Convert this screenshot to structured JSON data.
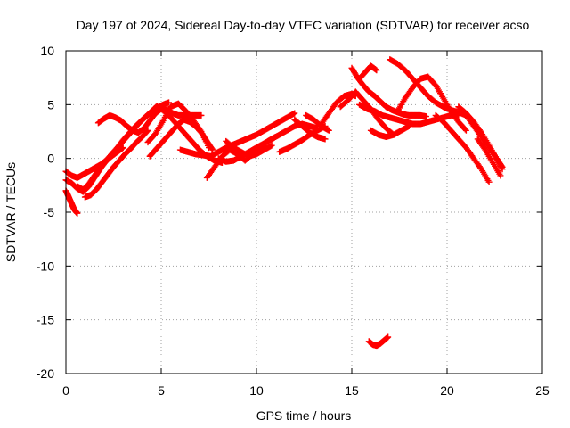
{
  "chart_data": {
    "type": "scatter",
    "title": "Day 197 of 2024, Sidereal Day-to-day VTEC variation (SDTVAR) for receiver acso",
    "xlabel": "GPS time / hours",
    "ylabel": "SDTVAR / TECUs",
    "xlim": [
      0,
      25
    ],
    "ylim": [
      -20,
      10
    ],
    "xticks": [
      "0",
      "5",
      "10",
      "15",
      "20",
      "25"
    ],
    "yticks": [
      "-20",
      "-15",
      "-10",
      "-5",
      "0",
      "5",
      "10"
    ],
    "grid": true,
    "marker": "+",
    "color": "#ff0000",
    "series": [
      {
        "name": "track-1",
        "x": [
          0.0,
          0.1,
          0.2,
          0.3,
          0.4,
          0.5,
          0.6
        ],
        "y": [
          -3.0,
          -3.4,
          -3.8,
          -4.2,
          -4.6,
          -4.9,
          -5.1
        ]
      },
      {
        "name": "track-2",
        "x": [
          0.0,
          0.3,
          0.6,
          0.9,
          1.2,
          1.5,
          1.8,
          2.1,
          2.4,
          2.7,
          3.0,
          3.3,
          3.6,
          3.9,
          4.2,
          4.5,
          4.8
        ],
        "y": [
          -2.0,
          -2.3,
          -2.8,
          -3.1,
          -2.6,
          -1.8,
          -1.0,
          -0.2,
          0.4,
          1.0,
          1.6,
          2.2,
          2.8,
          3.4,
          3.9,
          4.4,
          4.9
        ]
      },
      {
        "name": "track-3",
        "x": [
          0.6,
          0.9,
          1.2,
          1.5,
          1.8,
          2.1,
          2.4,
          2.7,
          3.0,
          3.3,
          3.6,
          3.9,
          4.2,
          4.5,
          4.8,
          5.1,
          5.4
        ],
        "y": [
          -2.6,
          -2.9,
          -2.4,
          -1.6,
          -0.9,
          -0.3,
          0.4,
          1.0,
          1.7,
          2.3,
          2.9,
          3.4,
          3.9,
          4.3,
          4.7,
          5.0,
          5.2
        ]
      },
      {
        "name": "track-4",
        "x": [
          1.0,
          1.3,
          1.6,
          1.9,
          2.2,
          2.5,
          2.8,
          3.1,
          3.4,
          3.7,
          4.0,
          4.3
        ],
        "y": [
          -3.6,
          -3.4,
          -2.9,
          -2.2,
          -1.5,
          -0.8,
          -0.2,
          0.4,
          0.9,
          1.5,
          2.0,
          2.6
        ]
      },
      {
        "name": "track-5",
        "x": [
          0.0,
          0.3,
          0.6,
          0.9,
          1.2,
          1.5,
          1.8,
          2.1,
          2.4,
          2.7,
          3.0
        ],
        "y": [
          -1.2,
          -1.6,
          -1.8,
          -1.5,
          -1.2,
          -0.9,
          -0.6,
          -0.2,
          0.2,
          0.6,
          1.0
        ]
      },
      {
        "name": "track-6",
        "x": [
          1.7,
          2.0,
          2.3,
          2.6,
          2.9,
          3.2,
          3.5,
          3.8,
          4.1,
          4.4,
          4.7,
          5.0,
          5.3,
          5.6,
          5.9,
          6.2,
          6.5,
          6.8,
          7.1
        ],
        "y": [
          3.3,
          3.7,
          4.0,
          3.8,
          3.5,
          3.0,
          2.6,
          2.4,
          2.8,
          3.5,
          4.2,
          4.6,
          4.5,
          4.2,
          4.0,
          4.0,
          4.0,
          4.0,
          4.0
        ]
      },
      {
        "name": "track-7",
        "x": [
          4.3,
          4.7,
          5.1,
          5.5,
          5.9,
          6.3,
          6.7,
          7.1,
          7.5
        ],
        "y": [
          1.5,
          2.3,
          3.5,
          4.8,
          5.1,
          4.4,
          3.5,
          2.5,
          1.0
        ]
      },
      {
        "name": "track-8",
        "x": [
          4.4,
          4.7,
          5.0,
          5.3,
          5.6,
          5.9,
          6.2,
          6.5,
          6.8,
          7.1,
          7.4,
          7.7
        ],
        "y": [
          0.2,
          0.8,
          1.4,
          2.0,
          2.6,
          3.2,
          3.6,
          3.4,
          3.0,
          2.4,
          1.6,
          0.8
        ]
      },
      {
        "name": "track-9",
        "x": [
          5.0,
          5.4,
          5.8,
          6.2,
          6.6,
          7.0,
          7.4,
          7.8,
          8.2
        ],
        "y": [
          4.6,
          4.0,
          3.2,
          2.4,
          1.6,
          0.8,
          0.2,
          -0.2,
          -0.4
        ]
      },
      {
        "name": "track-10",
        "x": [
          6.0,
          6.4,
          6.8,
          7.2,
          7.6,
          8.0,
          8.4,
          8.8,
          9.2,
          9.6,
          10.0,
          10.4,
          10.8,
          11.2,
          11.6,
          12.0
        ],
        "y": [
          0.8,
          0.6,
          0.4,
          0.3,
          0.2,
          0.6,
          1.0,
          1.3,
          1.6,
          1.9,
          2.2,
          2.6,
          3.0,
          3.4,
          3.8,
          4.2
        ]
      },
      {
        "name": "track-11",
        "x": [
          7.4,
          7.8,
          8.2,
          8.6,
          9.0,
          9.4,
          9.8,
          10.2,
          10.6,
          11.0
        ],
        "y": [
          -1.8,
          -0.8,
          0.2,
          0.8,
          0.4,
          -0.2,
          0.4,
          1.0,
          1.6,
          2.0
        ]
      },
      {
        "name": "track-12",
        "x": [
          8.0,
          8.4,
          8.8,
          9.2,
          9.6,
          10.0,
          10.4,
          10.8,
          11.2,
          11.6,
          12.0,
          12.4,
          12.8,
          13.2
        ],
        "y": [
          0.0,
          -0.3,
          -0.2,
          0.2,
          0.6,
          1.0,
          1.4,
          1.8,
          2.2,
          2.6,
          3.0,
          3.2,
          3.0,
          2.8
        ]
      },
      {
        "name": "track-13",
        "x": [
          8.4,
          8.8,
          9.2,
          9.6,
          10.0,
          10.4,
          10.8
        ],
        "y": [
          1.6,
          1.0,
          0.6,
          0.2,
          0.4,
          0.8,
          1.2
        ]
      },
      {
        "name": "track-14",
        "x": [
          11.2,
          11.6,
          12.0,
          12.4,
          12.8,
          13.2,
          13.6
        ],
        "y": [
          0.6,
          0.9,
          1.3,
          1.7,
          2.2,
          2.6,
          3.0
        ]
      },
      {
        "name": "track-15",
        "x": [
          12.0,
          12.4,
          12.8,
          13.2,
          13.6
        ],
        "y": [
          3.6,
          3.0,
          2.4,
          2.0,
          1.8
        ]
      },
      {
        "name": "track-16",
        "x": [
          12.6,
          13.0,
          13.4,
          13.8
        ],
        "y": [
          4.0,
          3.6,
          3.0,
          2.6
        ]
      },
      {
        "name": "track-17",
        "x": [
          13.4,
          13.8,
          14.2,
          14.6,
          15.0,
          15.2
        ],
        "y": [
          3.2,
          4.2,
          5.2,
          5.8,
          6.0,
          5.8
        ]
      },
      {
        "name": "track-18",
        "x": [
          14.4,
          14.8,
          15.2,
          15.6,
          16.0,
          16.4,
          16.8,
          17.2
        ],
        "y": [
          4.8,
          5.4,
          6.2,
          5.4,
          4.6,
          3.6,
          2.8,
          2.2
        ]
      },
      {
        "name": "track-19",
        "x": [
          15.0,
          15.3,
          15.6,
          15.9,
          16.2,
          16.5,
          16.8,
          17.1,
          17.4,
          17.7,
          18.0,
          18.3,
          18.6,
          18.9
        ],
        "y": [
          8.4,
          7.5,
          6.8,
          6.2,
          5.8,
          5.3,
          4.8,
          4.5,
          4.3,
          4.1,
          4.0,
          4.0,
          4.0,
          3.9
        ]
      },
      {
        "name": "track-20",
        "x": [
          15.4,
          15.8,
          16.2,
          16.6,
          17.0,
          17.4,
          17.8,
          18.2,
          18.6,
          19.0,
          19.4,
          19.8,
          20.2,
          20.6
        ],
        "y": [
          5.0,
          4.6,
          4.4,
          4.0,
          3.8,
          3.6,
          3.4,
          3.2,
          3.2,
          3.4,
          3.6,
          3.8,
          4.0,
          4.0
        ]
      },
      {
        "name": "track-21",
        "x": [
          15.4,
          15.7,
          16.0,
          16.3
        ],
        "y": [
          7.4,
          8.0,
          8.6,
          8.2
        ]
      },
      {
        "name": "track-22",
        "x": [
          16.0,
          16.4,
          16.8,
          17.2,
          17.6,
          18.0
        ],
        "y": [
          2.6,
          2.2,
          2.0,
          2.2,
          2.6,
          3.0
        ]
      },
      {
        "name": "track-23",
        "x": [
          17.0,
          17.4,
          17.8,
          18.2,
          18.6,
          19.0,
          19.4,
          19.8,
          20.2,
          20.6,
          21.0,
          21.4,
          21.8,
          22.2,
          22.6,
          22.9
        ],
        "y": [
          9.2,
          8.8,
          8.2,
          7.4,
          6.6,
          5.8,
          5.2,
          4.8,
          4.5,
          4.3,
          4.0,
          3.0,
          2.0,
          1.0,
          0.0,
          -1.0
        ]
      },
      {
        "name": "track-24",
        "x": [
          17.4,
          17.8,
          18.2,
          18.6,
          19.0,
          19.4,
          19.8,
          20.2,
          20.6,
          21.0
        ],
        "y": [
          4.4,
          5.6,
          6.6,
          7.4,
          7.6,
          6.8,
          5.6,
          4.4,
          3.4,
          2.6
        ]
      },
      {
        "name": "track-25",
        "x": [
          19.4,
          19.8,
          20.2,
          20.6,
          21.0,
          21.4,
          21.8,
          22.2
        ],
        "y": [
          4.0,
          3.4,
          2.6,
          1.8,
          1.0,
          0.0,
          -1.0,
          -2.2
        ]
      },
      {
        "name": "track-26",
        "x": [
          20.6,
          21.0,
          21.4,
          21.8,
          22.2,
          22.6,
          22.9
        ],
        "y": [
          4.8,
          4.2,
          3.4,
          2.4,
          1.2,
          0.0,
          -0.8
        ]
      },
      {
        "name": "track-27",
        "x": [
          21.6,
          22.0,
          22.4,
          22.8
        ],
        "y": [
          1.8,
          0.8,
          -0.4,
          -1.6
        ]
      },
      {
        "name": "track-28",
        "x": [
          15.9,
          16.1,
          16.3,
          16.5,
          16.7,
          16.9
        ],
        "y": [
          -17.0,
          -17.3,
          -17.4,
          -17.2,
          -16.9,
          -16.6
        ]
      }
    ]
  }
}
